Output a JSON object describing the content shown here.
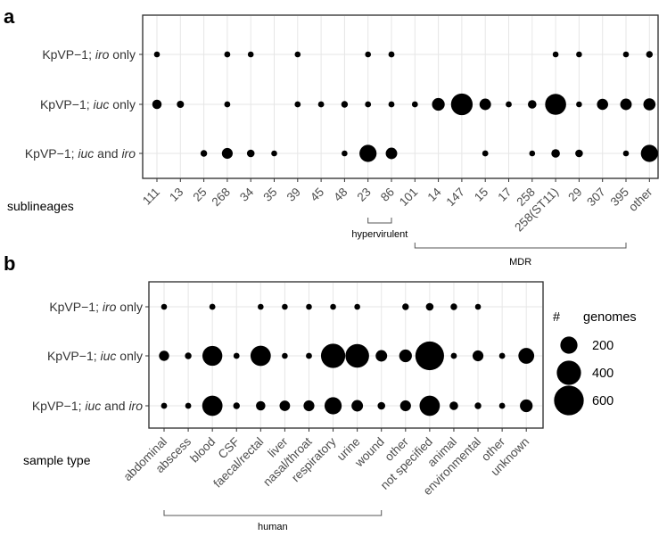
{
  "chart_data": [
    {
      "panel": "a",
      "type": "scatter",
      "xlabel": "sublineages",
      "rows": [
        {
          "pre": "KpVP−1; ",
          "parts": [
            {
              "t": "iro",
              "i": true
            },
            {
              "t": " only",
              "i": false
            }
          ]
        },
        {
          "pre": "KpVP−1; ",
          "parts": [
            {
              "t": "iuc",
              "i": true
            },
            {
              "t": " only",
              "i": false
            }
          ]
        },
        {
          "pre": "KpVP−1; ",
          "parts": [
            {
              "t": "iuc",
              "i": true
            },
            {
              "t": " and ",
              "i": false
            },
            {
              "t": "iro",
              "i": true
            }
          ]
        }
      ],
      "categories": [
        "111",
        "13",
        "25",
        "268",
        "34",
        "35",
        "39",
        "45",
        "48",
        "23",
        "86",
        "101",
        "14",
        "147",
        "15",
        "17",
        "258",
        "258(ST11)",
        "29",
        "307",
        "395",
        "other"
      ],
      "series": [
        {
          "name": "KpVP-1; iro only",
          "values": [
            10,
            0,
            0,
            25,
            10,
            0,
            10,
            0,
            0,
            15,
            25,
            0,
            0,
            0,
            0,
            0,
            0,
            15,
            20,
            0,
            15,
            30
          ]
        },
        {
          "name": "KpVP-1; iuc only",
          "values": [
            60,
            35,
            0,
            25,
            0,
            0,
            25,
            25,
            30,
            25,
            25,
            25,
            110,
            320,
            90,
            25,
            50,
            300,
            10,
            85,
            90,
            100
          ]
        },
        {
          "name": "KpVP-1; iuc and iro",
          "values": [
            0,
            0,
            30,
            80,
            40,
            10,
            0,
            0,
            10,
            200,
            90,
            0,
            0,
            0,
            25,
            0,
            15,
            50,
            40,
            0,
            15,
            200
          ]
        }
      ],
      "groups": [
        {
          "label": "hypervirulent",
          "from": "23",
          "to": "86"
        },
        {
          "label": "MDR",
          "from": "101",
          "to": "395"
        }
      ]
    },
    {
      "panel": "b",
      "type": "scatter",
      "xlabel": "sample type",
      "rows": [
        {
          "pre": "KpVP−1; ",
          "parts": [
            {
              "t": "iro",
              "i": true
            },
            {
              "t": " only",
              "i": false
            }
          ]
        },
        {
          "pre": "KpVP−1; ",
          "parts": [
            {
              "t": "iuc",
              "i": true
            },
            {
              "t": " only",
              "i": false
            }
          ]
        },
        {
          "pre": "KpVP−1; ",
          "parts": [
            {
              "t": "iuc",
              "i": true
            },
            {
              "t": " and ",
              "i": false
            },
            {
              "t": "iro",
              "i": true
            }
          ]
        }
      ],
      "categories": [
        "abdominal",
        "abscess",
        "blood",
        "CSF",
        "faecal/rectal",
        "liver",
        "nasal/throat",
        "respiratory",
        "urine",
        "wound",
        "other",
        "not specified",
        "animal",
        "environmental",
        "other",
        "unknown"
      ],
      "series": [
        {
          "name": "KpVP-1; iro only",
          "values": [
            10,
            0,
            25,
            0,
            12,
            20,
            12,
            20,
            20,
            0,
            30,
            40,
            30,
            15,
            0,
            0
          ]
        },
        {
          "name": "KpVP-1; iuc only",
          "values": [
            70,
            30,
            270,
            25,
            280,
            12,
            25,
            400,
            380,
            90,
            110,
            560,
            25,
            80,
            25,
            170
          ]
        },
        {
          "name": "KpVP-1; iuc and iro",
          "values": [
            25,
            25,
            280,
            30,
            60,
            75,
            80,
            200,
            90,
            40,
            80,
            280,
            50,
            30,
            25,
            110
          ]
        }
      ],
      "groups": [
        {
          "label": "human",
          "from": "abdominal",
          "to": "wound"
        }
      ],
      "legend": {
        "title_a": "#",
        "title_b": "genomes",
        "sizes": [
          200,
          400,
          600
        ],
        "labels": [
          "200",
          "400",
          "600"
        ],
        "placement": "right"
      }
    }
  ]
}
